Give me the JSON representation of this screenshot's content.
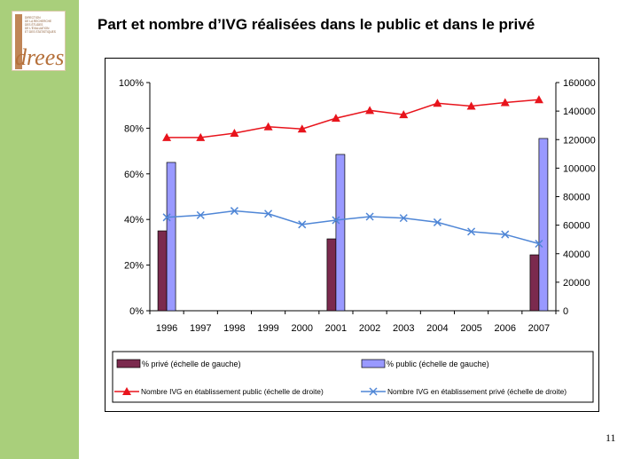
{
  "slide": {
    "title": "Part et nombre d’IVG réalisées dans le public et dans le privé",
    "page_number": "11"
  },
  "logo": {
    "wordmark": "drees",
    "lines": [
      "DIRECTION",
      "DE LA RECHERCHE",
      "DES ÉTUDES",
      "DE L'ÉVALUATION",
      "ET DES STATISTIQUES"
    ]
  },
  "colors": {
    "side_band": "#a9cf7b",
    "bar_prive": "#7b2a4e",
    "bar_public": "#9999ff",
    "line_public": "#e8141c",
    "line_prive": "#4f86d6",
    "logo_brown": "#b5703a"
  },
  "chart_data": {
    "type": "bar+line",
    "categories": [
      "1996",
      "1997",
      "1998",
      "1999",
      "2000",
      "2001",
      "2002",
      "2003",
      "2004",
      "2005",
      "2006",
      "2007"
    ],
    "y_left": {
      "ticks": [
        "0%",
        "20%",
        "40%",
        "60%",
        "80%",
        "100%"
      ],
      "ylim": [
        0,
        100
      ]
    },
    "y_right": {
      "ticks": [
        "0",
        "20000",
        "40000",
        "60000",
        "80000",
        "100000",
        "120000",
        "140000",
        "160000"
      ],
      "ylim": [
        0,
        160000
      ]
    },
    "bars": [
      {
        "name": "% privé (échelle de gauche)",
        "axis": "left",
        "values": [
          35,
          null,
          null,
          null,
          null,
          31.5,
          null,
          null,
          null,
          null,
          null,
          24.5
        ]
      },
      {
        "name": "% public (échelle de gauche)",
        "axis": "left",
        "values": [
          65,
          null,
          null,
          null,
          null,
          68.5,
          null,
          null,
          null,
          null,
          null,
          75.5
        ]
      }
    ],
    "lines": [
      {
        "name": "Nombre IVG en établissement public (échelle de droite)",
        "axis": "right",
        "marker": "triangle",
        "values": [
          121500,
          121500,
          124500,
          129000,
          127500,
          135000,
          140500,
          137500,
          145500,
          143500,
          146000,
          148000
        ]
      },
      {
        "name": "Nombre IVG en établissement privé (échelle de droite)",
        "axis": "right",
        "marker": "x",
        "values": [
          65500,
          67000,
          70000,
          68000,
          60500,
          63500,
          66000,
          65000,
          62000,
          55500,
          53500,
          47000
        ]
      }
    ],
    "grid": false,
    "legend_position": "bottom"
  }
}
